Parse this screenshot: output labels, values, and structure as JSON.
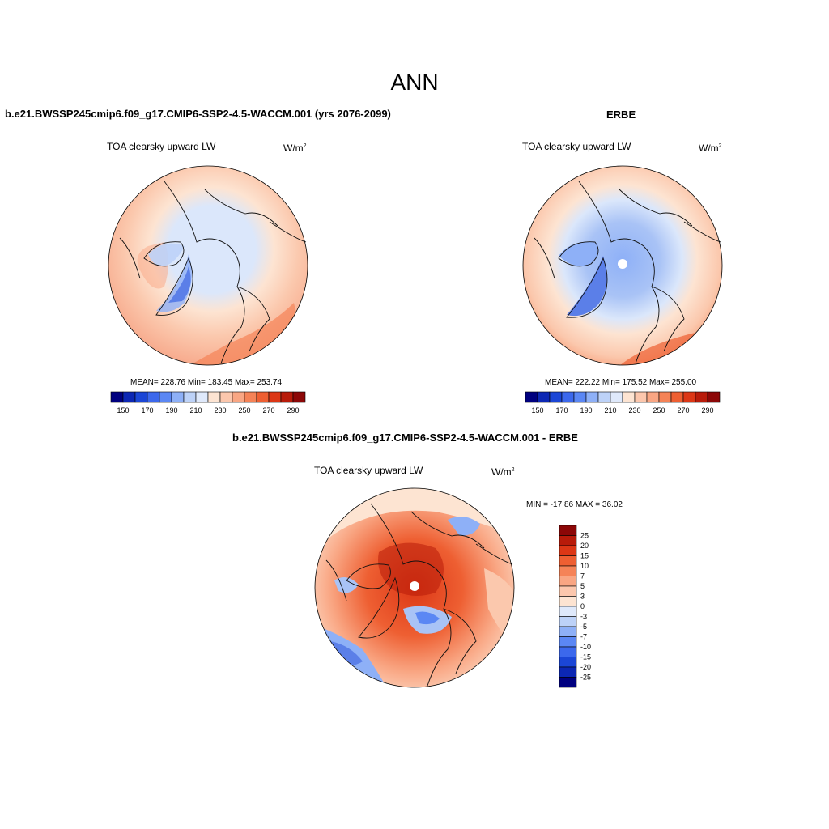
{
  "figure": {
    "title": "ANN",
    "panels": [
      {
        "id": "model",
        "heading": "b.e21.BWSSP245cmip6.f09_g17.CMIP6-SSP2-4.5-WACCM.001 (yrs 2076-2099)",
        "variable": "TOA clearsky upward LW",
        "units_base": "W/m",
        "units_exp": "2",
        "stats": "MEAN= 228.76  Min= 183.45  Max= 253.74",
        "mean": 228.76,
        "min": 183.45,
        "max": 253.74
      },
      {
        "id": "obs",
        "heading": "ERBE",
        "variable": "TOA clearsky upward LW",
        "units_base": "W/m",
        "units_exp": "2",
        "stats": "MEAN= 222.22  Min= 175.52  Max= 255.00",
        "mean": 222.22,
        "min": 175.52,
        "max": 255.0
      },
      {
        "id": "diff",
        "heading": "b.e21.BWSSP245cmip6.f09_g17.CMIP6-SSP2-4.5-WACCM.001 - ERBE",
        "variable": "TOA clearsky upward LW",
        "units_base": "W/m",
        "units_exp": "2",
        "stats": "MIN = -17.86 MAX =  36.02",
        "min": -17.86,
        "max": 36.02
      }
    ]
  },
  "colorbar_abs": {
    "labels": [
      "150",
      "170",
      "190",
      "210",
      "230",
      "250",
      "270",
      "290"
    ],
    "colors": [
      "#00007f",
      "#0c27b4",
      "#1b46d6",
      "#3c68ec",
      "#5b87f4",
      "#8eb0f7",
      "#bdd2f8",
      "#dfe9fb",
      "#fde4d2",
      "#fcc7ad",
      "#f9a683",
      "#f58357",
      "#ee5f32",
      "#dc3716",
      "#b81b0a",
      "#8c0707"
    ]
  },
  "colorbar_diff": {
    "labels": [
      "25",
      "20",
      "15",
      "10",
      "7",
      "5",
      "3",
      "0",
      "-3",
      "-5",
      "-7",
      "-10",
      "-15",
      "-20",
      "-25"
    ],
    "colors": [
      "#8c0707",
      "#b81b0a",
      "#dc3716",
      "#ee5f32",
      "#f58357",
      "#f9a683",
      "#fcc7ad",
      "#fde4d2",
      "#dfe9fb",
      "#bdd2f8",
      "#8eb0f7",
      "#5b87f4",
      "#3c68ec",
      "#1b46d6",
      "#0c27b4",
      "#00007f"
    ]
  },
  "map_colors": {
    "outer": "#f6a385",
    "mid": "#fbc8ad",
    "light": "#fde4d2",
    "pale_blue": "#dbe7fb",
    "blue": "#a9c3f6",
    "deep_blue": "#5b7fe8",
    "red": "#ee5f32",
    "dark_red": "#dc3716",
    "coast": "#111111"
  }
}
